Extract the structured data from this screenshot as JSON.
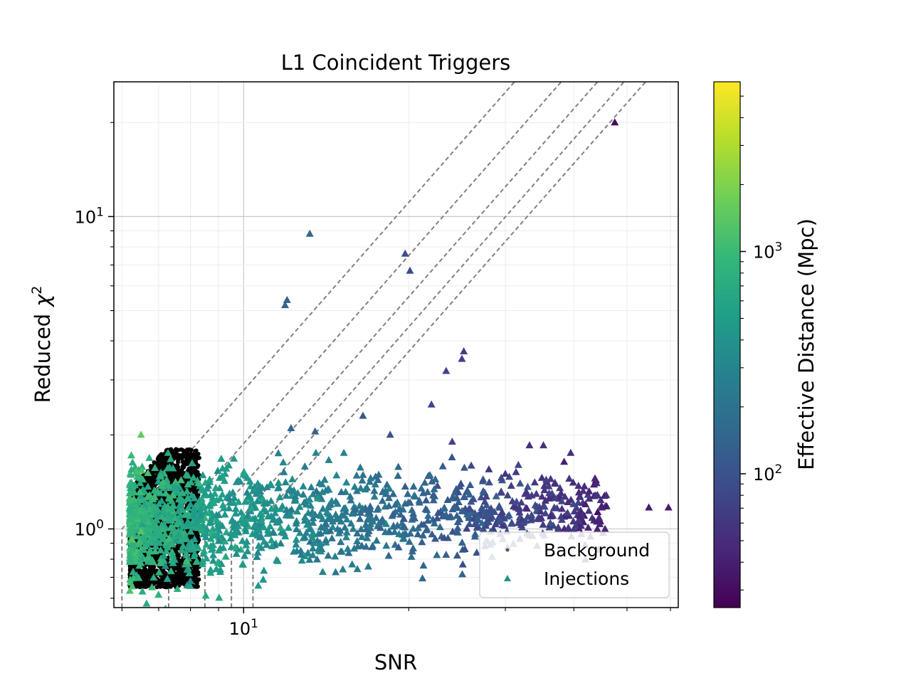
{
  "chart_data": {
    "type": "scatter",
    "title": "L1 Coincident Triggers",
    "xlabel": "SNR",
    "ylabel_text": "Reduced",
    "ylabel_symbol": "χ",
    "ylabel_sup": "2",
    "xscale": "log",
    "yscale": "log",
    "xlim": [
      5.8,
      62
    ],
    "ylim": [
      0.56,
      27
    ],
    "grid": true,
    "x_tick_labels": [
      {
        "value": 10,
        "base": "10",
        "exp": "1"
      }
    ],
    "y_tick_labels": [
      {
        "value": 1,
        "base": "10",
        "exp": "0"
      },
      {
        "value": 10,
        "base": "10",
        "exp": "1"
      }
    ],
    "legend": {
      "position": "lower right",
      "entries": [
        {
          "label": "Background",
          "marker": "dot",
          "color": "#555555"
        },
        {
          "label": "Injections",
          "marker": "triangle",
          "color": "#21918c"
        }
      ]
    },
    "colorbar": {
      "label": "Effective Distance (Mpc)",
      "scale": "log",
      "range": [
        25,
        5800
      ],
      "colormap": "viridis",
      "colormap_colors": [
        "#440154",
        "#482878",
        "#3e4989",
        "#31688e",
        "#26828e",
        "#1f9e89",
        "#35b779",
        "#6ece58",
        "#b5de2b",
        "#fde725"
      ],
      "tick_labels": [
        {
          "value": 100,
          "base": "10",
          "exp": "2"
        },
        {
          "value": 1000,
          "base": "10",
          "exp": "3"
        }
      ]
    },
    "reference_lines": [
      {
        "snr_threshold": 6.0
      },
      {
        "snr_threshold": 7.3
      },
      {
        "snr_threshold": 8.5
      },
      {
        "snr_threshold": 9.5
      },
      {
        "snr_threshold": 10.4
      }
    ],
    "series": [
      {
        "name": "Background",
        "marker": "dot",
        "color": "#000000",
        "region": {
          "snr_min": 6.2,
          "snr_max": 8.3,
          "chi_min": 0.65,
          "chi_max": 1.8
        }
      },
      {
        "name": "Injections",
        "marker": "triangle",
        "points": [
          {
            "snr": 6.5,
            "chi": 2.0,
            "dist": 1500
          },
          {
            "snr": 8.0,
            "chi": 0.68,
            "dist": 300
          },
          {
            "snr": 7.2,
            "chi": 0.76,
            "dist": 350
          },
          {
            "snr": 13.2,
            "chi": 8.8,
            "dist": 150
          },
          {
            "snr": 19.7,
            "chi": 7.6,
            "dist": 90
          },
          {
            "snr": 20.1,
            "chi": 6.7,
            "dist": 90
          },
          {
            "snr": 12.0,
            "chi": 5.4,
            "dist": 140
          },
          {
            "snr": 11.9,
            "chi": 5.2,
            "dist": 140
          },
          {
            "snr": 25.2,
            "chi": 3.7,
            "dist": 70
          },
          {
            "snr": 25.0,
            "chi": 3.5,
            "dist": 70
          },
          {
            "snr": 23.4,
            "chi": 3.2,
            "dist": 75
          },
          {
            "snr": 22.0,
            "chi": 2.5,
            "dist": 80
          },
          {
            "snr": 16.5,
            "chi": 2.3,
            "dist": 110
          },
          {
            "snr": 12.2,
            "chi": 2.1,
            "dist": 150
          },
          {
            "snr": 13.5,
            "chi": 2.05,
            "dist": 140
          },
          {
            "snr": 18.5,
            "chi": 2.0,
            "dist": 100
          },
          {
            "snr": 24.0,
            "chi": 1.9,
            "dist": 75
          },
          {
            "snr": 33.2,
            "chi": 1.85,
            "dist": 55
          },
          {
            "snr": 35.2,
            "chi": 1.85,
            "dist": 55
          },
          {
            "snr": 43.7,
            "chi": 1.45,
            "dist": 45
          },
          {
            "snr": 44.0,
            "chi": 1.4,
            "dist": 45
          },
          {
            "snr": 54.8,
            "chi": 1.17,
            "dist": 38
          },
          {
            "snr": 59.5,
            "chi": 1.17,
            "dist": 38
          },
          {
            "snr": 47.5,
            "chi": 20.0,
            "dist": 30
          },
          {
            "snr": 45.0,
            "chi": 1.17,
            "dist": 42
          },
          {
            "snr": 41.0,
            "chi": 1.1,
            "dist": 45
          },
          {
            "snr": 36.0,
            "chi": 1.25,
            "dist": 50
          },
          {
            "snr": 30.0,
            "chi": 1.5,
            "dist": 60
          },
          {
            "snr": 28.0,
            "chi": 1.55,
            "dist": 60
          }
        ],
        "cloud": {
          "snr_min": 6.2,
          "snr_max": 46,
          "chi_center": 1.05,
          "dist_at_min": 900,
          "dist_at_max": 45
        }
      }
    ]
  }
}
